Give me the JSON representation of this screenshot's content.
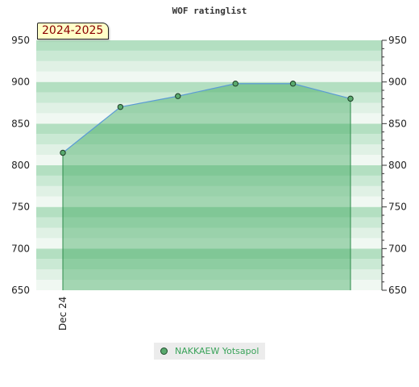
{
  "chart_data": {
    "type": "area",
    "title": "WOF ratinglist",
    "season_label": "2024-2025",
    "xlabel": "",
    "ylabel": "",
    "ylim": [
      650,
      950
    ],
    "y_ticks": [
      650,
      700,
      750,
      800,
      850,
      900,
      950
    ],
    "x_tick_labels": [
      "Dec 24"
    ],
    "series": [
      {
        "name": "NAKKAEW Yotsapol",
        "values": [
          815,
          870,
          883,
          898,
          898,
          880
        ]
      }
    ],
    "grid": true,
    "legend_position": "bottom",
    "colors": {
      "fill": "#3aa75a",
      "line": "#5b9bd5",
      "marker": "#5aaa6e",
      "band_dark": "#b3dfc1",
      "band_mid": "#cae9d4",
      "band_light": "#e0f1e5",
      "band_pale": "#f0f8f2"
    }
  }
}
